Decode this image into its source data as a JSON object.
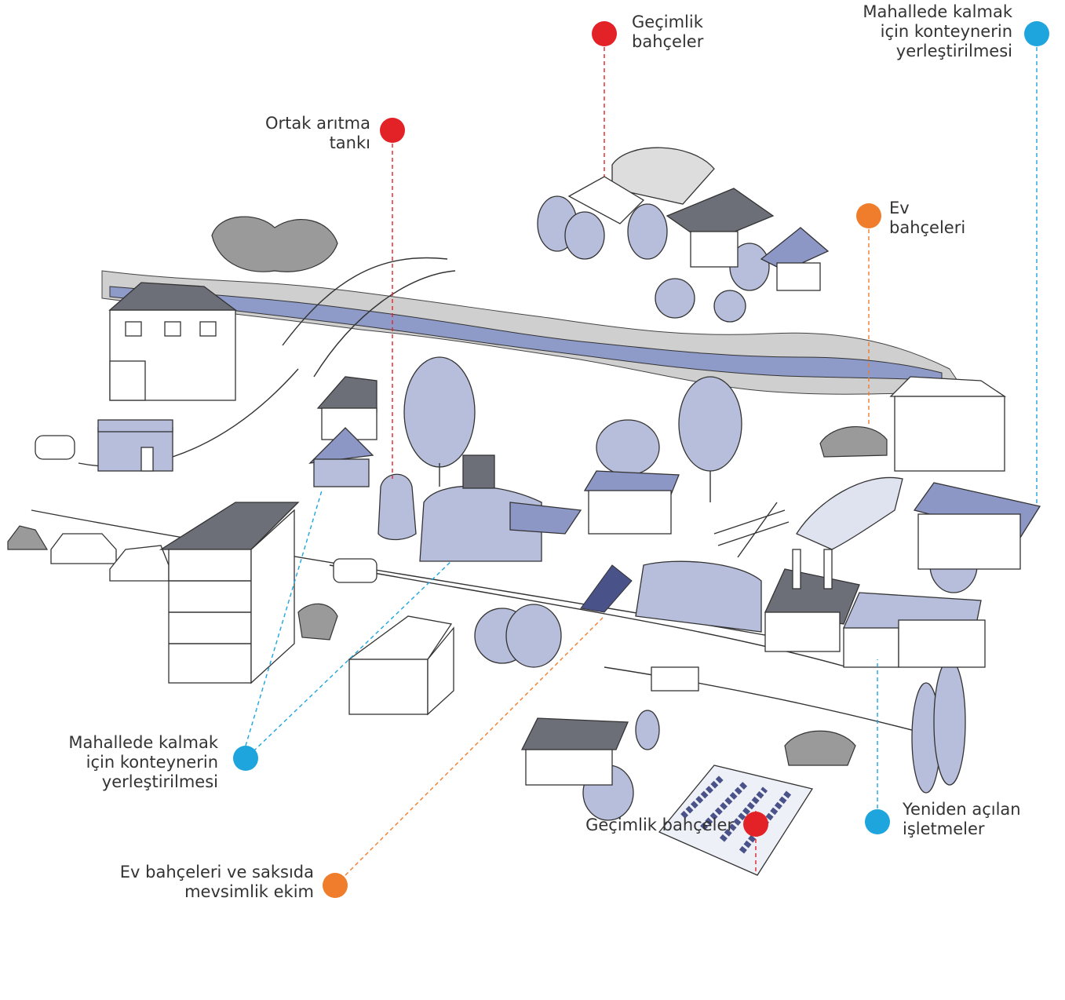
{
  "callouts": [
    {
      "lines": [
        "Geçimlik",
        "bahçeler"
      ]
    },
    {
      "lines": [
        "Mahallede kalmak",
        "için konteynerin",
        "yerleştirilmesi"
      ]
    },
    {
      "lines": [
        "Ortak arıtma",
        "tankı"
      ]
    },
    {
      "lines": [
        "Ev",
        "bahçeleri"
      ]
    },
    {
      "lines": [
        "Mahallede kalmak",
        "için konteynerin",
        "yerleştirilmesi"
      ]
    },
    {
      "lines": [
        "Ev bahçeleri ve saksıda",
        "mevsimlik ekim"
      ]
    },
    {
      "lines": [
        "Geçimlik bahçeler"
      ]
    },
    {
      "lines": [
        "Yeniden açılan",
        "işletmeler"
      ]
    }
  ]
}
